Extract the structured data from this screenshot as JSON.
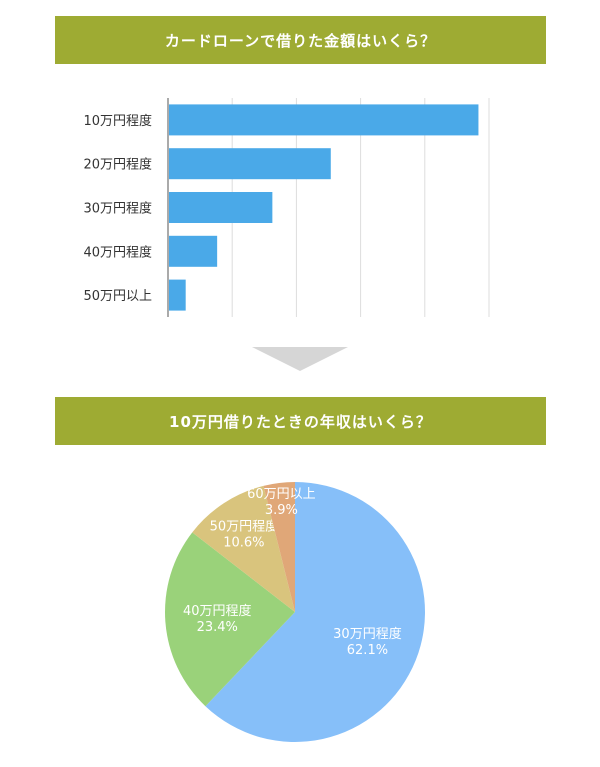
{
  "section1": {
    "title": "カードローンで借りた金額はいくら？"
  },
  "section2": {
    "title": "10万円借りたときの年収はいくら？"
  },
  "colors": {
    "banner": "#9eab33",
    "bar": "#4aa9e8",
    "grid": "#dddddd",
    "arrow": "#d6d6d6",
    "pie": [
      "#86bff9",
      "#9ad27a",
      "#d9c47d",
      "#e0a778"
    ]
  },
  "chart_data": [
    {
      "type": "bar",
      "orientation": "horizontal",
      "categories": [
        "10万円程度",
        "20万円程度",
        "30万円程度",
        "40万円程度",
        "50万円以上"
      ],
      "values": [
        48.2,
        25.2,
        16.1,
        7.5,
        2.6
      ],
      "xlim": [
        0,
        50
      ],
      "grid": true
    },
    {
      "type": "pie",
      "slices": [
        {
          "label": "30万円程度",
          "value": 62.1,
          "value_label": "62.1%"
        },
        {
          "label": "40万円程度",
          "value": 23.4,
          "value_label": "23.4%"
        },
        {
          "label": "50万円程度",
          "value": 10.6,
          "value_label": "10.6%"
        },
        {
          "label": "60万円以上",
          "value": 3.9,
          "value_label": "3.9%"
        }
      ]
    }
  ]
}
